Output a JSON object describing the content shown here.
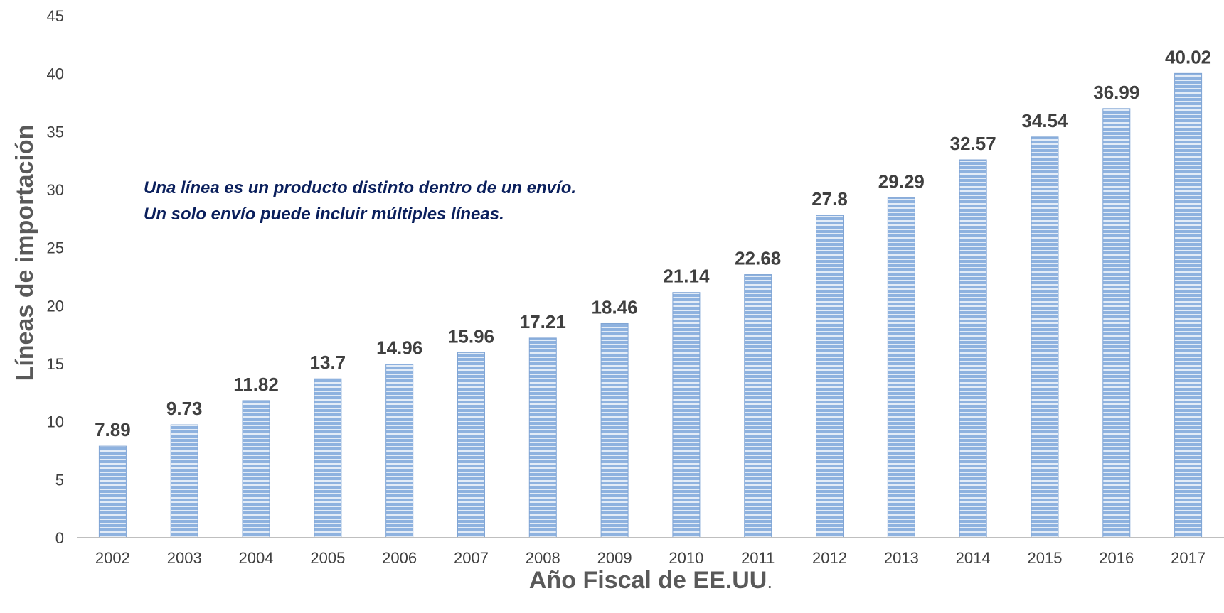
{
  "chart_data": {
    "type": "bar",
    "categories": [
      "2002",
      "2003",
      "2004",
      "2005",
      "2006",
      "2007",
      "2008",
      "2009",
      "2010",
      "2011",
      "2012",
      "2013",
      "2014",
      "2015",
      "2016",
      "2017"
    ],
    "values": [
      7.89,
      9.73,
      11.82,
      13.7,
      14.96,
      15.96,
      17.21,
      18.46,
      21.14,
      22.68,
      27.8,
      29.29,
      32.57,
      34.54,
      36.99,
      40.02
    ],
    "data_labels": [
      "7.89",
      "9.73",
      "11.82",
      "13.7",
      "14.96",
      "15.96",
      "17.21",
      "18.46",
      "21.14",
      "22.68",
      "27.8",
      "29.29",
      "32.57",
      "34.54",
      "36.99",
      "40.02"
    ],
    "xlabel": "Año Fiscal de EE.UU",
    "xlabel_suffix": ".",
    "ylabel": "Líneas de importación",
    "ylim": [
      0,
      45
    ],
    "yticks": [
      "0",
      "5",
      "10",
      "15",
      "20",
      "25",
      "30",
      "35",
      "40",
      "45"
    ],
    "grid": false,
    "legend": "none",
    "annotation": {
      "line1": "Una línea es un producto distinto dentro de un envío.",
      "line2": "Un solo envío puede incluir múltiples líneas."
    },
    "colors": {
      "bar_fill": "#8eb2df",
      "bar_stripe": "#ffffff",
      "axis_line": "#bfbfbf",
      "annotation_text": "#0a1f5c"
    }
  }
}
